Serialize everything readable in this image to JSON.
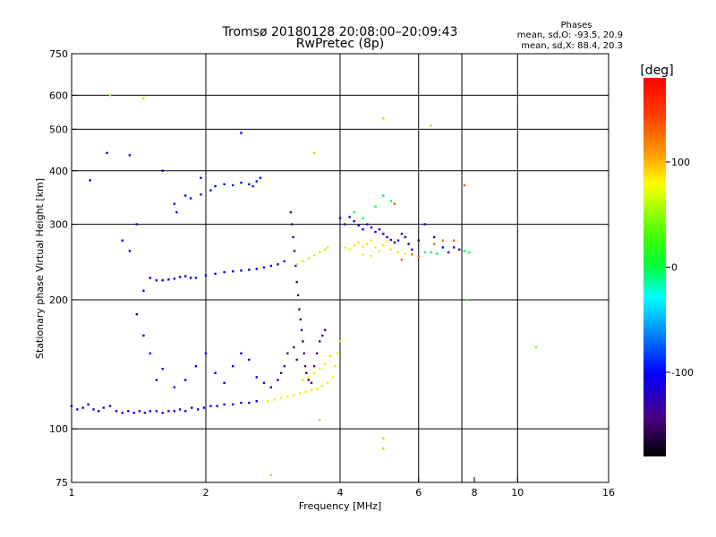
{
  "chart_data": {
    "type": "scatter",
    "title": "Tromsø 20180128 20:08:00–20:09:43",
    "subtitle": "RwPretec (8p)",
    "xlabel": "Frequency [MHz]",
    "ylabel": "Stationary phase Virtual Height [km]",
    "x_scale": "log",
    "y_scale": "log",
    "xlim": [
      1,
      16
    ],
    "ylim": [
      75,
      750
    ],
    "x_ticks": [
      1,
      2,
      4,
      6,
      8,
      10,
      16
    ],
    "x_tick_labels": [
      "1",
      "2",
      "4",
      "6",
      "8",
      "10",
      "16"
    ],
    "y_ticks": [
      75,
      100,
      200,
      300,
      400,
      500,
      600,
      750
    ],
    "y_tick_labels": [
      "75",
      "100",
      "200",
      "300",
      "400",
      "500",
      "600",
      "750"
    ],
    "grid_x": [
      1,
      2,
      4,
      6,
      7.5,
      10
    ],
    "grid_y": [
      100,
      200,
      300,
      400,
      500,
      600
    ],
    "phase_info": {
      "title": "Phases",
      "line1": "mean, sd,O: -93.5, 20.9",
      "line2": "mean, sd,X:  88.4, 20.3"
    },
    "colorbar": {
      "label": "[deg]",
      "range": [
        -180,
        180
      ],
      "ticks": [
        100,
        0,
        -100
      ],
      "tick_labels": [
        "100",
        "0",
        "-100"
      ]
    },
    "series": [
      {
        "color_phase": -120,
        "points": [
          [
            1.0,
            113
          ],
          [
            1.03,
            111
          ],
          [
            1.06,
            112
          ],
          [
            1.09,
            114
          ],
          [
            1.12,
            111
          ],
          [
            1.15,
            110
          ],
          [
            1.18,
            112
          ],
          [
            1.22,
            113
          ],
          [
            1.26,
            110
          ],
          [
            1.3,
            109
          ],
          [
            1.34,
            110
          ],
          [
            1.38,
            109
          ],
          [
            1.42,
            110
          ],
          [
            1.46,
            109
          ],
          [
            1.5,
            110
          ],
          [
            1.55,
            110
          ],
          [
            1.6,
            109
          ],
          [
            1.65,
            110
          ],
          [
            1.7,
            110
          ],
          [
            1.75,
            111
          ],
          [
            1.8,
            110
          ],
          [
            1.86,
            112
          ],
          [
            1.92,
            111
          ],
          [
            1.98,
            112
          ],
          [
            2.05,
            113
          ],
          [
            2.12,
            113
          ],
          [
            2.2,
            114
          ],
          [
            2.3,
            114
          ],
          [
            2.4,
            115
          ],
          [
            2.5,
            115
          ],
          [
            2.6,
            116
          ]
        ]
      },
      {
        "color_phase": -110,
        "points": [
          [
            1.5,
            225
          ],
          [
            1.55,
            222
          ],
          [
            1.6,
            222
          ],
          [
            1.65,
            223
          ],
          [
            1.7,
            224
          ],
          [
            1.75,
            226
          ],
          [
            1.8,
            227
          ],
          [
            1.85,
            225
          ],
          [
            1.9,
            225
          ],
          [
            2.0,
            228
          ],
          [
            2.1,
            230
          ],
          [
            2.2,
            232
          ],
          [
            2.3,
            233
          ],
          [
            2.4,
            234
          ],
          [
            2.5,
            235
          ],
          [
            2.6,
            236
          ],
          [
            2.7,
            238
          ],
          [
            2.8,
            240
          ],
          [
            2.9,
            242
          ],
          [
            3.0,
            246
          ]
        ]
      },
      {
        "color_phase": -105,
        "points": [
          [
            1.8,
            350
          ],
          [
            1.85,
            345
          ],
          [
            1.95,
            352
          ],
          [
            2.05,
            360
          ],
          [
            2.1,
            368
          ],
          [
            2.2,
            372
          ],
          [
            2.3,
            370
          ],
          [
            2.4,
            375
          ],
          [
            2.5,
            372
          ],
          [
            2.55,
            368
          ],
          [
            2.6,
            378
          ],
          [
            2.65,
            385
          ],
          [
            1.7,
            335
          ],
          [
            1.72,
            320
          ]
        ]
      },
      {
        "color_phase": -115,
        "points": [
          [
            1.3,
            275
          ],
          [
            1.35,
            260
          ],
          [
            1.4,
            300
          ],
          [
            1.45,
            210
          ],
          [
            1.4,
            185
          ],
          [
            1.45,
            165
          ],
          [
            1.5,
            150
          ],
          [
            1.55,
            130
          ],
          [
            1.6,
            138
          ],
          [
            1.7,
            125
          ],
          [
            1.8,
            130
          ],
          [
            1.9,
            140
          ],
          [
            2.0,
            150
          ],
          [
            2.1,
            135
          ],
          [
            2.2,
            128
          ],
          [
            2.3,
            140
          ],
          [
            2.4,
            150
          ],
          [
            2.5,
            145
          ],
          [
            2.6,
            132
          ],
          [
            2.7,
            128
          ],
          [
            2.8,
            125
          ],
          [
            2.9,
            130
          ],
          [
            1.2,
            440
          ],
          [
            1.35,
            435
          ],
          [
            1.6,
            400
          ],
          [
            2.4,
            490
          ],
          [
            1.1,
            380
          ],
          [
            1.95,
            385
          ]
        ]
      },
      {
        "color_phase": -150,
        "points": [
          [
            3.1,
            320
          ],
          [
            3.12,
            300
          ],
          [
            3.14,
            280
          ],
          [
            3.16,
            260
          ],
          [
            3.18,
            240
          ],
          [
            3.2,
            220
          ],
          [
            3.22,
            205
          ],
          [
            3.24,
            190
          ],
          [
            3.26,
            180
          ],
          [
            3.28,
            170
          ],
          [
            3.3,
            160
          ],
          [
            3.32,
            150
          ],
          [
            3.34,
            140
          ],
          [
            3.36,
            135
          ],
          [
            3.4,
            130
          ],
          [
            3.45,
            128
          ],
          [
            3.5,
            140
          ],
          [
            3.55,
            150
          ],
          [
            3.6,
            160
          ],
          [
            3.65,
            165
          ],
          [
            3.7,
            170
          ],
          [
            3.2,
            145
          ],
          [
            3.15,
            155
          ],
          [
            3.05,
            150
          ],
          [
            3.0,
            140
          ],
          [
            2.95,
            135
          ]
        ]
      },
      {
        "color_phase": 95,
        "points": [
          [
            2.75,
            116
          ],
          [
            2.85,
            117
          ],
          [
            2.95,
            118
          ],
          [
            3.05,
            119
          ],
          [
            3.15,
            120
          ],
          [
            3.25,
            121
          ],
          [
            3.35,
            122
          ],
          [
            3.45,
            123
          ],
          [
            3.55,
            124
          ],
          [
            3.65,
            126
          ],
          [
            3.75,
            128
          ],
          [
            3.85,
            132
          ],
          [
            3.9,
            140
          ],
          [
            3.95,
            150
          ],
          [
            4.0,
            160
          ],
          [
            3.5,
            135
          ],
          [
            3.6,
            138
          ],
          [
            3.7,
            142
          ],
          [
            3.8,
            148
          ],
          [
            3.3,
            130
          ],
          [
            3.4,
            132
          ]
        ]
      },
      {
        "color_phase": 80,
        "points": [
          [
            3.2,
            242
          ],
          [
            3.3,
            246
          ],
          [
            3.4,
            250
          ],
          [
            3.5,
            254
          ],
          [
            3.6,
            258
          ],
          [
            3.7,
            262
          ],
          [
            3.75,
            265
          ]
        ]
      },
      {
        "color_phase": -120,
        "points": [
          [
            4.0,
            310
          ],
          [
            4.1,
            300
          ],
          [
            4.2,
            312
          ],
          [
            4.3,
            305
          ],
          [
            4.4,
            298
          ],
          [
            4.5,
            292
          ],
          [
            4.6,
            300
          ],
          [
            4.7,
            295
          ],
          [
            4.8,
            288
          ],
          [
            4.9,
            292
          ],
          [
            5.0,
            285
          ],
          [
            5.1,
            280
          ],
          [
            5.2,
            276
          ],
          [
            5.3,
            272
          ],
          [
            5.4,
            275
          ],
          [
            5.5,
            285
          ],
          [
            5.6,
            280
          ],
          [
            5.7,
            270
          ],
          [
            5.8,
            262
          ],
          [
            6.0,
            275
          ],
          [
            6.2,
            300
          ],
          [
            6.5,
            280
          ],
          [
            6.8,
            265
          ],
          [
            7.0,
            258
          ],
          [
            7.2,
            265
          ],
          [
            7.4,
            262
          ]
        ]
      },
      {
        "color_phase": 90,
        "points": [
          [
            4.1,
            265
          ],
          [
            4.2,
            262
          ],
          [
            4.3,
            268
          ],
          [
            4.4,
            272
          ],
          [
            4.5,
            266
          ],
          [
            4.6,
            270
          ],
          [
            4.7,
            275
          ],
          [
            4.8,
            265
          ],
          [
            4.9,
            260
          ],
          [
            5.0,
            268
          ],
          [
            5.1,
            275
          ],
          [
            5.2,
            262
          ],
          [
            4.5,
            255
          ],
          [
            4.7,
            253
          ],
          [
            5.4,
            258
          ],
          [
            5.6,
            256
          ]
        ]
      },
      {
        "color_phase": 0,
        "points": [
          [
            4.3,
            320
          ],
          [
            4.5,
            310
          ],
          [
            4.8,
            330
          ],
          [
            5.0,
            350
          ],
          [
            5.2,
            340
          ],
          [
            6.2,
            258
          ],
          [
            6.4,
            258
          ],
          [
            6.6,
            256
          ],
          [
            7.6,
            260
          ],
          [
            7.8,
            258
          ],
          [
            7.7,
            200
          ]
        ]
      },
      {
        "color_phase": 140,
        "points": [
          [
            5.8,
            255
          ],
          [
            6.0,
            252
          ],
          [
            5.5,
            248
          ],
          [
            6.5,
            270
          ],
          [
            6.8,
            275
          ],
          [
            7.2,
            275
          ],
          [
            7.6,
            370
          ],
          [
            5.3,
            335
          ]
        ]
      },
      {
        "color_phase": 60,
        "points": [
          [
            1.22,
            600
          ],
          [
            1.45,
            590
          ],
          [
            3.5,
            440
          ],
          [
            5.0,
            530
          ],
          [
            5.0,
            95
          ],
          [
            5.0,
            90
          ],
          [
            11.0,
            155
          ],
          [
            2.8,
            78
          ],
          [
            3.6,
            105
          ],
          [
            6.4,
            510
          ]
        ]
      }
    ]
  }
}
